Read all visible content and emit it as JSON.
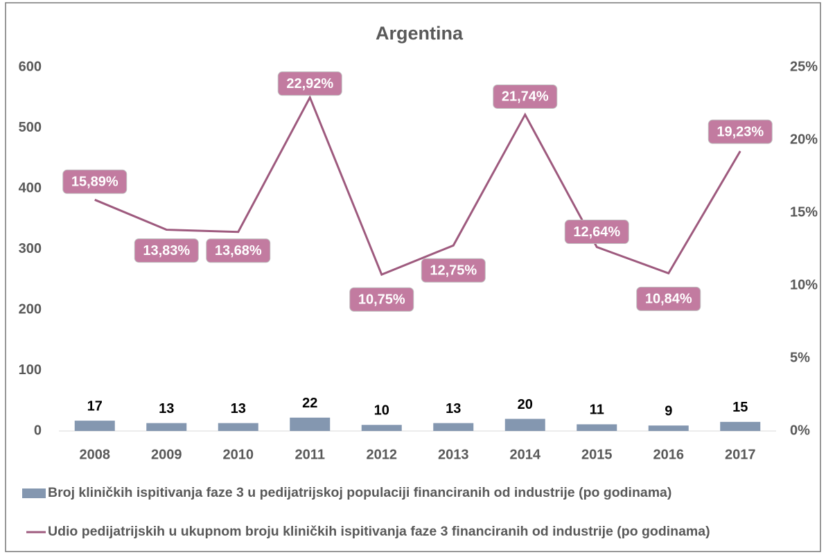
{
  "chart_data": {
    "type": "bar",
    "title": "Argentina",
    "categories": [
      "2008",
      "2009",
      "2010",
      "2011",
      "2012",
      "2013",
      "2014",
      "2015",
      "2016",
      "2017"
    ],
    "series": [
      {
        "name": "Broj kliničkih ispitivanja faze 3 u pedijatrijskoj populaciji financiranih od industrije (po godinama)",
        "type": "bar",
        "color": "#8497b0",
        "values": [
          17,
          13,
          13,
          22,
          10,
          13,
          20,
          11,
          9,
          15
        ]
      },
      {
        "name": "Udio pedijatrijskih u ukupnom broju kliničkih ispitivanja faze 3 financiranih od industrije (po godinama)",
        "type": "line",
        "axis": "y2",
        "color": "#9e5a7e",
        "values": [
          15.89,
          13.83,
          13.68,
          22.92,
          10.75,
          12.75,
          21.74,
          12.64,
          10.84,
          19.23
        ],
        "value_labels": [
          "15,89%",
          "13,83%",
          "13,68%",
          "22,92%",
          "10,75%",
          "12,75%",
          "21,74%",
          "12,64%",
          "10,84%",
          "19,23%"
        ]
      }
    ],
    "ylim": [
      0,
      600
    ],
    "yticks": [
      0,
      100,
      200,
      300,
      400,
      500,
      600
    ],
    "y2lim": [
      0,
      25
    ],
    "y2ticks": [
      {
        "value": 0,
        "label": "0%"
      },
      {
        "value": 5,
        "label": "5%"
      },
      {
        "value": 10,
        "label": "10%"
      },
      {
        "value": 15,
        "label": "15%"
      },
      {
        "value": 20,
        "label": "20%"
      },
      {
        "value": 25,
        "label": "25%"
      }
    ],
    "grid": false,
    "legend": "bottom"
  }
}
